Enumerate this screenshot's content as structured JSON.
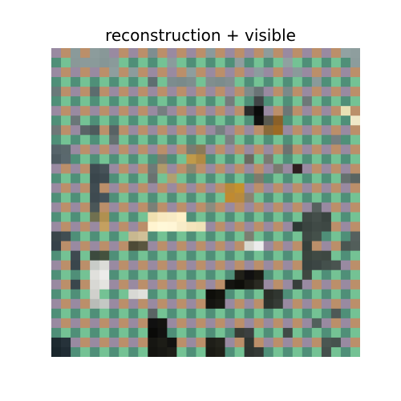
{
  "figure": {
    "title": "reconstruction + visible"
  },
  "image": {
    "grid_cells": 32,
    "mask_colors": [
      "#998aa1",
      "#bb8f6a",
      "#4f8f78",
      "#74c294"
    ],
    "background_color": "#8a8a8a",
    "visible_patches": [
      {
        "r": 0,
        "c": 2,
        "color": "#8a9a9a"
      },
      {
        "r": 0,
        "c": 4,
        "color": "#8c9c9c"
      },
      {
        "r": 0,
        "c": 5,
        "color": "#889898"
      },
      {
        "r": 0,
        "c": 10,
        "color": "#7e8e90"
      },
      {
        "r": 0,
        "c": 16,
        "color": "#8a9a9c"
      },
      {
        "r": 0,
        "c": 22,
        "color": "#8e9c9c"
      },
      {
        "r": 0,
        "c": 30,
        "color": "#92a2a2"
      },
      {
        "r": 0,
        "c": 31,
        "color": "#8e9e9e"
      },
      {
        "r": 1,
        "c": 2,
        "color": "#8a9898"
      },
      {
        "r": 1,
        "c": 3,
        "color": "#8c9a9a"
      },
      {
        "r": 1,
        "c": 4,
        "color": "#8a9a9a"
      },
      {
        "r": 1,
        "c": 5,
        "color": "#869696"
      },
      {
        "r": 1,
        "c": 6,
        "color": "#8a9a9a"
      },
      {
        "r": 1,
        "c": 12,
        "color": "#8a9c9c"
      },
      {
        "r": 1,
        "c": 19,
        "color": "#8e9e9e"
      },
      {
        "r": 1,
        "c": 24,
        "color": "#90a0a0"
      },
      {
        "r": 1,
        "c": 31,
        "color": "#8c9c9c"
      },
      {
        "r": 2,
        "c": 6,
        "color": "#8e9e9e"
      },
      {
        "r": 2,
        "c": 8,
        "color": "#8c9c9c"
      },
      {
        "r": 2,
        "c": 14,
        "color": "#8e9e9e"
      },
      {
        "r": 2,
        "c": 21,
        "color": "#8c9c9e"
      },
      {
        "r": 2,
        "c": 25,
        "color": "#8a9a9a"
      },
      {
        "r": 3,
        "c": 10,
        "color": "#5e6e70"
      },
      {
        "r": 3,
        "c": 12,
        "color": "#7c8c8e"
      },
      {
        "r": 3,
        "c": 13,
        "color": "#7a8a8a"
      },
      {
        "r": 3,
        "c": 14,
        "color": "#7e8e8e"
      },
      {
        "r": 3,
        "c": 16,
        "color": "#808e8e"
      },
      {
        "r": 3,
        "c": 17,
        "color": "#7c8c8c"
      },
      {
        "r": 3,
        "c": 18,
        "color": "#828e90"
      },
      {
        "r": 3,
        "c": 27,
        "color": "#8a9a9a"
      },
      {
        "r": 4,
        "c": 0,
        "color": "#6a7a7a"
      },
      {
        "r": 4,
        "c": 4,
        "color": "#5c6c6e"
      },
      {
        "r": 4,
        "c": 20,
        "color": "#7e8c8c"
      },
      {
        "r": 4,
        "c": 21,
        "color": "#6a7476"
      },
      {
        "r": 4,
        "c": 24,
        "color": "#7a8a8a"
      },
      {
        "r": 5,
        "c": 18,
        "color": "#747c7c"
      },
      {
        "r": 5,
        "c": 21,
        "color": "#404446"
      },
      {
        "r": 5,
        "c": 26,
        "color": "#6e7878"
      },
      {
        "r": 6,
        "c": 11,
        "color": "#767e80"
      },
      {
        "r": 6,
        "c": 20,
        "color": "#2a2a2a"
      },
      {
        "r": 6,
        "c": 21,
        "color": "#0a0a0a"
      },
      {
        "r": 6,
        "c": 24,
        "color": "#6c7676"
      },
      {
        "r": 6,
        "c": 30,
        "color": "#e8e0b4"
      },
      {
        "r": 7,
        "c": 2,
        "color": "#6a7678"
      },
      {
        "r": 7,
        "c": 21,
        "color": "#101010"
      },
      {
        "r": 7,
        "c": 22,
        "color": "#5a5a50"
      },
      {
        "r": 7,
        "c": 23,
        "color": "#8a6028"
      },
      {
        "r": 7,
        "c": 31,
        "color": "#f0e8c8"
      },
      {
        "r": 8,
        "c": 0,
        "color": "#6e7878"
      },
      {
        "r": 8,
        "c": 3,
        "color": "#5a6466"
      },
      {
        "r": 8,
        "c": 4,
        "color": "#4e5a5c"
      },
      {
        "r": 8,
        "c": 6,
        "color": "#586264"
      },
      {
        "r": 8,
        "c": 17,
        "color": "#768080"
      },
      {
        "r": 8,
        "c": 22,
        "color": "#8a6a3a"
      },
      {
        "r": 8,
        "c": 23,
        "color": "#9c6a24"
      },
      {
        "r": 9,
        "c": 6,
        "color": "#647070"
      },
      {
        "r": 9,
        "c": 18,
        "color": "#7a8282"
      },
      {
        "r": 9,
        "c": 29,
        "color": "#747e80"
      },
      {
        "r": 10,
        "c": 0,
        "color": "#56646a"
      },
      {
        "r": 10,
        "c": 1,
        "color": "#5a686c"
      },
      {
        "r": 10,
        "c": 14,
        "color": "#7a7c72"
      },
      {
        "r": 10,
        "c": 15,
        "color": "#8a7a58"
      },
      {
        "r": 10,
        "c": 24,
        "color": "#6c7270"
      },
      {
        "r": 11,
        "c": 0,
        "color": "#4e5c62"
      },
      {
        "r": 11,
        "c": 1,
        "color": "#5a686e"
      },
      {
        "r": 11,
        "c": 11,
        "color": "#7a7e70"
      },
      {
        "r": 11,
        "c": 14,
        "color": "#c09a4a"
      },
      {
        "r": 11,
        "c": 15,
        "color": "#b08a44"
      },
      {
        "r": 11,
        "c": 20,
        "color": "#6a6a60"
      },
      {
        "r": 11,
        "c": 22,
        "color": "#7a7a72"
      },
      {
        "r": 12,
        "c": 4,
        "color": "#3e4a50"
      },
      {
        "r": 12,
        "c": 5,
        "color": "#465258"
      },
      {
        "r": 12,
        "c": 10,
        "color": "#6e7a78"
      },
      {
        "r": 12,
        "c": 11,
        "color": "#b09a6a"
      },
      {
        "r": 12,
        "c": 14,
        "color": "#8a8670"
      },
      {
        "r": 12,
        "c": 23,
        "color": "#7a7a70"
      },
      {
        "r": 12,
        "c": 25,
        "color": "#2e1e20"
      },
      {
        "r": 13,
        "c": 4,
        "color": "#3a464c"
      },
      {
        "r": 13,
        "c": 5,
        "color": "#3e4a50"
      },
      {
        "r": 13,
        "c": 10,
        "color": "#6a7270"
      },
      {
        "r": 13,
        "c": 12,
        "color": "#b0a070"
      },
      {
        "r": 13,
        "c": 21,
        "color": "#7e7a6c"
      },
      {
        "r": 13,
        "c": 30,
        "color": "#66706e"
      },
      {
        "r": 13,
        "c": 31,
        "color": "#5a6462"
      },
      {
        "r": 14,
        "c": 4,
        "color": "#404c52"
      },
      {
        "r": 14,
        "c": 18,
        "color": "#b88a3a"
      },
      {
        "r": 14,
        "c": 19,
        "color": "#c4922e"
      },
      {
        "r": 15,
        "c": 4,
        "color": "#3e4a50"
      },
      {
        "r": 15,
        "c": 5,
        "color": "#44525a"
      },
      {
        "r": 15,
        "c": 18,
        "color": "#c08a30"
      },
      {
        "r": 15,
        "c": 19,
        "color": "#b88a3e"
      },
      {
        "r": 15,
        "c": 20,
        "color": "#8a8270"
      },
      {
        "r": 16,
        "c": 4,
        "color": "#4a5658"
      },
      {
        "r": 16,
        "c": 10,
        "color": "#7a8078"
      },
      {
        "r": 16,
        "c": 16,
        "color": "#8c8c80"
      },
      {
        "r": 16,
        "c": 27,
        "color": "#56605e"
      },
      {
        "r": 17,
        "c": 4,
        "color": "#707050"
      },
      {
        "r": 17,
        "c": 5,
        "color": "#b09050"
      },
      {
        "r": 17,
        "c": 10,
        "color": "#f0e0b0"
      },
      {
        "r": 17,
        "c": 11,
        "color": "#f8e8c0"
      },
      {
        "r": 17,
        "c": 12,
        "color": "#f8eac4"
      },
      {
        "r": 17,
        "c": 13,
        "color": "#fff0c8"
      },
      {
        "r": 17,
        "c": 26,
        "color": "#3e4844"
      },
      {
        "r": 17,
        "c": 27,
        "color": "#444e4a"
      },
      {
        "r": 17,
        "c": 28,
        "color": "#3a4440"
      },
      {
        "r": 18,
        "c": 5,
        "color": "#c4a060"
      },
      {
        "r": 18,
        "c": 10,
        "color": "#fff4d0"
      },
      {
        "r": 18,
        "c": 11,
        "color": "#fff8d8"
      },
      {
        "r": 18,
        "c": 12,
        "color": "#fff6d6"
      },
      {
        "r": 18,
        "c": 13,
        "color": "#f8ecc8"
      },
      {
        "r": 18,
        "c": 14,
        "color": "#f4e4bc"
      },
      {
        "r": 18,
        "c": 15,
        "color": "#f0e2b8"
      },
      {
        "r": 18,
        "c": 25,
        "color": "#2e3834"
      },
      {
        "r": 18,
        "c": 26,
        "color": "#3a4440"
      },
      {
        "r": 18,
        "c": 27,
        "color": "#404a46"
      },
      {
        "r": 18,
        "c": 28,
        "color": "#3e4844"
      },
      {
        "r": 19,
        "c": 0,
        "color": "#3a464a"
      },
      {
        "r": 19,
        "c": 1,
        "color": "#414d52"
      },
      {
        "r": 19,
        "c": 8,
        "color": "#c8b890"
      },
      {
        "r": 19,
        "c": 9,
        "color": "#d0c098"
      },
      {
        "r": 19,
        "c": 20,
        "color": "#7a7e70"
      },
      {
        "r": 19,
        "c": 26,
        "color": "#3e4844"
      },
      {
        "r": 19,
        "c": 27,
        "color": "#44504a"
      },
      {
        "r": 19,
        "c": 31,
        "color": "#56605e"
      },
      {
        "r": 20,
        "c": 0,
        "color": "#36424a"
      },
      {
        "r": 20,
        "c": 8,
        "color": "#4e4a36"
      },
      {
        "r": 20,
        "c": 9,
        "color": "#5a5640"
      },
      {
        "r": 20,
        "c": 20,
        "color": "#d8d8d0"
      },
      {
        "r": 20,
        "c": 21,
        "color": "#ececec"
      },
      {
        "r": 20,
        "c": 26,
        "color": "#36403c"
      },
      {
        "r": 20,
        "c": 30,
        "color": "#4a5652"
      },
      {
        "r": 20,
        "c": 31,
        "color": "#525e5a"
      },
      {
        "r": 21,
        "c": 2,
        "color": "#3e4a50"
      },
      {
        "r": 21,
        "c": 4,
        "color": "#3c4a3e"
      },
      {
        "r": 21,
        "c": 5,
        "color": "#44523e"
      },
      {
        "r": 21,
        "c": 26,
        "color": "#3a443e"
      },
      {
        "r": 21,
        "c": 27,
        "color": "#404a44"
      },
      {
        "r": 21,
        "c": 28,
        "color": "#3e4842"
      },
      {
        "r": 22,
        "c": 2,
        "color": "#3a464c"
      },
      {
        "r": 22,
        "c": 4,
        "color": "#c8ccc8"
      },
      {
        "r": 22,
        "c": 5,
        "color": "#dcdcd8"
      },
      {
        "r": 22,
        "c": 26,
        "color": "#384240"
      },
      {
        "r": 22,
        "c": 27,
        "color": "#3c4644"
      },
      {
        "r": 22,
        "c": 28,
        "color": "#44504c"
      },
      {
        "r": 22,
        "c": 29,
        "color": "#4a5450"
      },
      {
        "r": 23,
        "c": 4,
        "color": "#e0e0dc"
      },
      {
        "r": 23,
        "c": 5,
        "color": "#ececea"
      },
      {
        "r": 23,
        "c": 19,
        "color": "#202018"
      },
      {
        "r": 23,
        "c": 20,
        "color": "#101010"
      },
      {
        "r": 23,
        "c": 21,
        "color": "#1a1a12"
      },
      {
        "r": 23,
        "c": 26,
        "color": "#3e4840"
      },
      {
        "r": 24,
        "c": 2,
        "color": "#3a464c"
      },
      {
        "r": 24,
        "c": 4,
        "color": "#d8d8d4"
      },
      {
        "r": 24,
        "c": 5,
        "color": "#e4e4e0"
      },
      {
        "r": 24,
        "c": 18,
        "color": "#141410"
      },
      {
        "r": 24,
        "c": 19,
        "color": "#0e0e0a"
      },
      {
        "r": 24,
        "c": 20,
        "color": "#1c1c16"
      },
      {
        "r": 24,
        "c": 21,
        "color": "#2a2a22"
      },
      {
        "r": 24,
        "c": 25,
        "color": "#383e3a"
      },
      {
        "r": 25,
        "c": 4,
        "color": "#d0d0cc"
      },
      {
        "r": 25,
        "c": 8,
        "color": "#d8d8d4"
      },
      {
        "r": 25,
        "c": 9,
        "color": "#e0e0dc"
      },
      {
        "r": 25,
        "c": 16,
        "color": "#0e0e0a"
      },
      {
        "r": 25,
        "c": 17,
        "color": "#14140e"
      },
      {
        "r": 25,
        "c": 22,
        "color": "#2a2e28"
      },
      {
        "r": 25,
        "c": 23,
        "color": "#303630"
      },
      {
        "r": 26,
        "c": 4,
        "color": "#b8bcb8"
      },
      {
        "r": 26,
        "c": 5,
        "color": "#c4c8c4"
      },
      {
        "r": 26,
        "c": 16,
        "color": "#141410"
      },
      {
        "r": 26,
        "c": 17,
        "color": "#1a1a14"
      },
      {
        "r": 26,
        "c": 22,
        "color": "#2c322c"
      },
      {
        "r": 26,
        "c": 23,
        "color": "#363c36"
      },
      {
        "r": 27,
        "c": 10,
        "color": "#5a6464"
      },
      {
        "r": 27,
        "c": 29,
        "color": "#4e5856"
      },
      {
        "r": 28,
        "c": 10,
        "color": "#101010"
      },
      {
        "r": 28,
        "c": 11,
        "color": "#141410"
      },
      {
        "r": 28,
        "c": 27,
        "color": "#52605c"
      },
      {
        "r": 29,
        "c": 10,
        "color": "#0a0a08"
      },
      {
        "r": 29,
        "c": 11,
        "color": "#121210"
      },
      {
        "r": 29,
        "c": 19,
        "color": "#383c36"
      },
      {
        "r": 29,
        "c": 20,
        "color": "#3c4040"
      },
      {
        "r": 29,
        "c": 24,
        "color": "#404a46"
      },
      {
        "r": 30,
        "c": 0,
        "color": "#1e2a30"
      },
      {
        "r": 30,
        "c": 1,
        "color": "#26323a"
      },
      {
        "r": 30,
        "c": 10,
        "color": "#161612"
      },
      {
        "r": 30,
        "c": 11,
        "color": "#1c1c16"
      },
      {
        "r": 30,
        "c": 12,
        "color": "#121210"
      },
      {
        "r": 30,
        "c": 16,
        "color": "#1e1e18"
      },
      {
        "r": 30,
        "c": 17,
        "color": "#24241c"
      },
      {
        "r": 30,
        "c": 20,
        "color": "#303632"
      },
      {
        "r": 30,
        "c": 28,
        "color": "#4a5652"
      },
      {
        "r": 30,
        "c": 29,
        "color": "#46524e"
      },
      {
        "r": 31,
        "c": 0,
        "color": "#1a262c"
      },
      {
        "r": 31,
        "c": 1,
        "color": "#202c34"
      },
      {
        "r": 31,
        "c": 10,
        "color": "#141410"
      },
      {
        "r": 31,
        "c": 11,
        "color": "#181814"
      },
      {
        "r": 31,
        "c": 12,
        "color": "#1e1e18"
      },
      {
        "r": 31,
        "c": 16,
        "color": "#1a1a14"
      },
      {
        "r": 31,
        "c": 17,
        "color": "#202018"
      },
      {
        "r": 31,
        "c": 20,
        "color": "#2e3430"
      },
      {
        "r": 31,
        "c": 21,
        "color": "#343a36"
      },
      {
        "r": 31,
        "c": 28,
        "color": "#44504c"
      }
    ]
  }
}
